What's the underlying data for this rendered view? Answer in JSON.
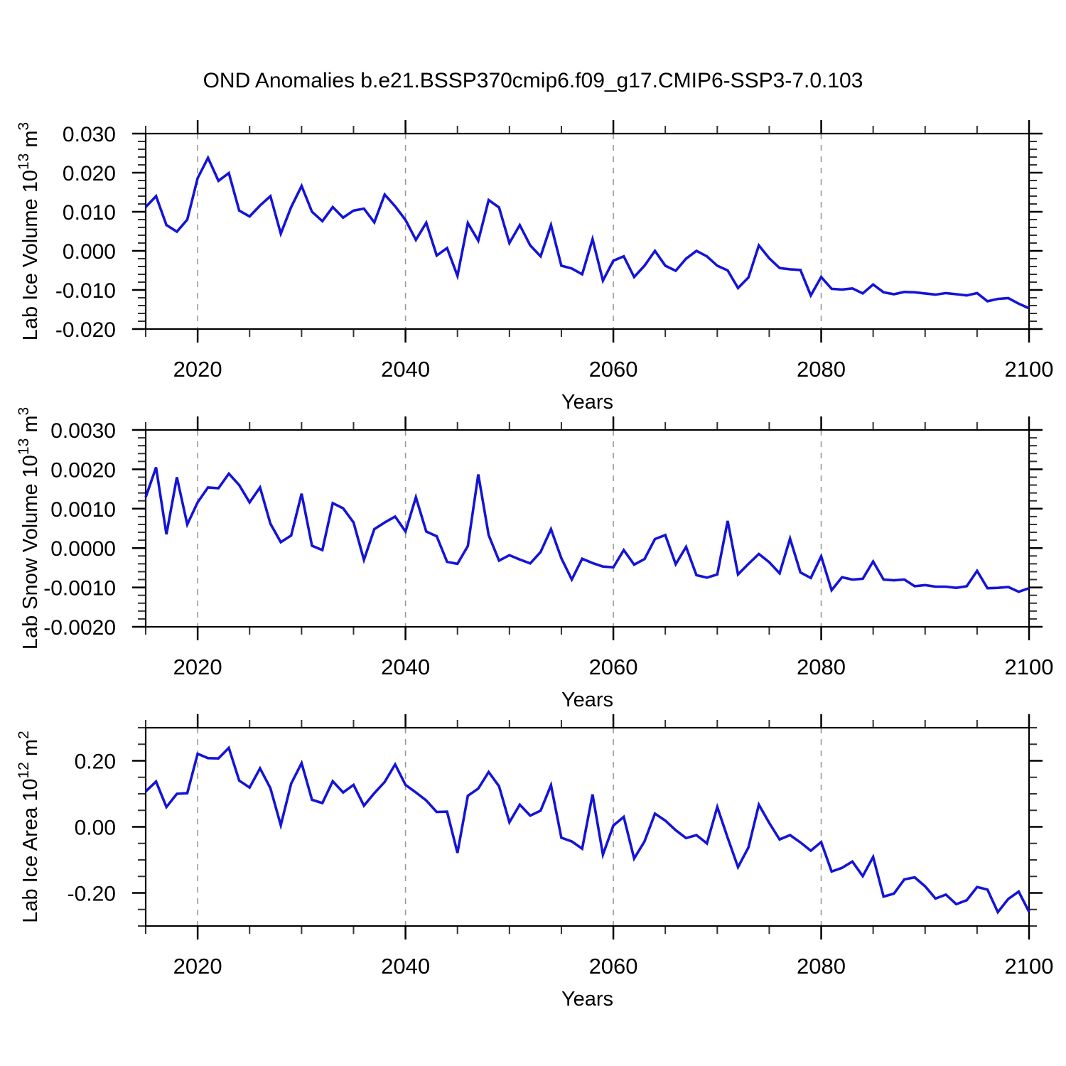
{
  "figure": {
    "title": "OND Anomalies b.e21.BSSP370cmip6.f09_g17.CMIP6-SSP3-7.0.103",
    "background": "#ffffff"
  },
  "style": {
    "line_color": "#1414d7",
    "axis_color": "#000000",
    "minor_tick_color": "#333333",
    "grid_color": "#999999",
    "text_color": "#000000"
  },
  "chart_data": [
    {
      "type": "line",
      "name": "lab-ice-volume",
      "ylabel_parts": [
        {
          "t": "Lab Ice Volume 10"
        },
        {
          "t": "13",
          "sup": true
        },
        {
          "t": " m"
        },
        {
          "t": "3",
          "sup": true
        }
      ],
      "xlabel": "Years",
      "x": {
        "start": 2015,
        "end": 2100,
        "step": 1
      },
      "x_major_ticks": [
        "2020",
        "2040",
        "2060",
        "2080",
        "2100"
      ],
      "x_minor_step": 5,
      "x_gridlines": [
        2020,
        2040,
        2060,
        2080
      ],
      "ylim": [
        -0.02,
        0.03
      ],
      "y_major_ticks": [
        "0.030",
        "0.020",
        "0.010",
        "0.000",
        "-0.010",
        "-0.020"
      ],
      "y_minor_step": 0.002,
      "grid": "vertical-dashed",
      "legend": "none",
      "values": [
        0.0112,
        0.014,
        0.0066,
        0.0049,
        0.008,
        0.0186,
        0.0238,
        0.0179,
        0.0199,
        0.0103,
        0.0088,
        0.0116,
        0.014,
        0.0044,
        0.0112,
        0.0166,
        0.01,
        0.0076,
        0.0112,
        0.0085,
        0.0103,
        0.0108,
        0.0073,
        0.0144,
        0.0114,
        0.0079,
        0.0028,
        0.0072,
        -0.0012,
        0.0007,
        -0.0064,
        0.0071,
        0.0026,
        0.013,
        0.0111,
        0.002,
        0.0066,
        0.0014,
        -0.0014,
        0.0066,
        -0.0038,
        -0.0045,
        -0.006,
        0.003,
        -0.0076,
        -0.0025,
        -0.0014,
        -0.0067,
        -0.0038,
        0.0,
        -0.0038,
        -0.0051,
        -0.002,
        0.0,
        -0.0014,
        -0.0038,
        -0.005,
        -0.0095,
        -0.0068,
        0.0014,
        -0.0019,
        -0.0044,
        -0.0047,
        -0.0049,
        -0.0114,
        -0.0067,
        -0.0097,
        -0.0099,
        -0.0096,
        -0.0109,
        -0.0086,
        -0.0106,
        -0.0111,
        -0.0105,
        -0.0106,
        -0.0109,
        -0.0112,
        -0.0108,
        -0.0111,
        -0.0114,
        -0.0108,
        -0.0129,
        -0.0123,
        -0.0121,
        -0.0135,
        -0.0147
      ]
    },
    {
      "type": "line",
      "name": "lab-snow-volume",
      "ylabel_parts": [
        {
          "t": "Lab Snow Volume 10"
        },
        {
          "t": "13",
          "sup": true
        },
        {
          "t": " m"
        },
        {
          "t": "3",
          "sup": true
        }
      ],
      "xlabel": "Years",
      "x": {
        "start": 2015,
        "end": 2100,
        "step": 1
      },
      "x_major_ticks": [
        "2020",
        "2040",
        "2060",
        "2080",
        "2100"
      ],
      "x_minor_step": 5,
      "x_gridlines": [
        2020,
        2040,
        2060,
        2080
      ],
      "ylim": [
        -0.002,
        0.003
      ],
      "y_major_ticks": [
        "0.0030",
        "0.0020",
        "0.0010",
        "0.0000",
        "-0.0010",
        "-0.0020"
      ],
      "y_minor_step": 0.0002,
      "grid": "vertical-dashed",
      "legend": "none",
      "values": [
        0.00129,
        0.00205,
        0.00035,
        0.0018,
        0.0006,
        0.00116,
        0.00154,
        0.00152,
        0.00189,
        0.0016,
        0.00116,
        0.00154,
        0.00062,
        0.00015,
        0.00032,
        0.00138,
        6e-05,
        -5e-05,
        0.00114,
        0.00101,
        0.00065,
        -0.0003,
        0.00048,
        0.00065,
        0.0008,
        0.00042,
        0.00129,
        0.00042,
        0.0003,
        -0.00035,
        -0.0004,
        5e-05,
        0.00187,
        0.00033,
        -0.00032,
        -0.00018,
        -0.00029,
        -0.00039,
        -0.0001,
        0.00048,
        -0.00026,
        -0.0008,
        -0.00027,
        -0.00038,
        -0.00047,
        -0.00049,
        -5e-05,
        -0.00042,
        -0.00028,
        0.00023,
        0.00033,
        -0.00041,
        3e-05,
        -0.00069,
        -0.00075,
        -0.00067,
        0.00069,
        -0.00067,
        -0.0004,
        -0.00015,
        -0.00036,
        -0.00064,
        0.00024,
        -0.00062,
        -0.00076,
        -0.00021,
        -0.00107,
        -0.00074,
        -0.0008,
        -0.00078,
        -0.00034,
        -0.0008,
        -0.00082,
        -0.0008,
        -0.00097,
        -0.00094,
        -0.00098,
        -0.00098,
        -0.00101,
        -0.00097,
        -0.00058,
        -0.00102,
        -0.00101,
        -0.00099,
        -0.00111,
        -0.00102
      ]
    },
    {
      "type": "line",
      "name": "lab-ice-area",
      "ylabel_parts": [
        {
          "t": "Lab Ice Area 10"
        },
        {
          "t": "12",
          "sup": true
        },
        {
          "t": " m"
        },
        {
          "t": "2",
          "sup": true
        }
      ],
      "xlabel": "Years",
      "x": {
        "start": 2015,
        "end": 2100,
        "step": 1
      },
      "x_major_ticks": [
        "2020",
        "2040",
        "2060",
        "2080",
        "2100"
      ],
      "x_minor_step": 5,
      "x_gridlines": [
        2020,
        2040,
        2060,
        2080
      ],
      "ylim": [
        -0.3,
        0.3
      ],
      "y_major_ticks": [
        "0.20",
        "0.00",
        "-0.20"
      ],
      "y_minor_step": 0.05,
      "grid": "vertical-dashed",
      "legend": "none",
      "values": [
        0.107,
        0.137,
        0.06,
        0.1,
        0.102,
        0.221,
        0.208,
        0.207,
        0.239,
        0.14,
        0.119,
        0.177,
        0.117,
        0.005,
        0.131,
        0.193,
        0.082,
        0.072,
        0.138,
        0.104,
        0.127,
        0.064,
        0.102,
        0.136,
        0.189,
        0.127,
        0.104,
        0.08,
        0.045,
        0.046,
        -0.079,
        0.094,
        0.116,
        0.166,
        0.123,
        0.014,
        0.067,
        0.034,
        0.049,
        0.126,
        -0.033,
        -0.044,
        -0.066,
        0.098,
        -0.084,
        0.004,
        0.03,
        -0.096,
        -0.044,
        0.04,
        0.019,
        -0.01,
        -0.034,
        -0.025,
        -0.05,
        0.06,
        -0.033,
        -0.122,
        -0.062,
        0.067,
        0.012,
        -0.038,
        -0.025,
        -0.047,
        -0.072,
        -0.046,
        -0.135,
        -0.124,
        -0.105,
        -0.149,
        -0.091,
        -0.211,
        -0.202,
        -0.159,
        -0.153,
        -0.18,
        -0.217,
        -0.205,
        -0.234,
        -0.222,
        -0.182,
        -0.19,
        -0.258,
        -0.218,
        -0.196,
        -0.257
      ]
    }
  ]
}
